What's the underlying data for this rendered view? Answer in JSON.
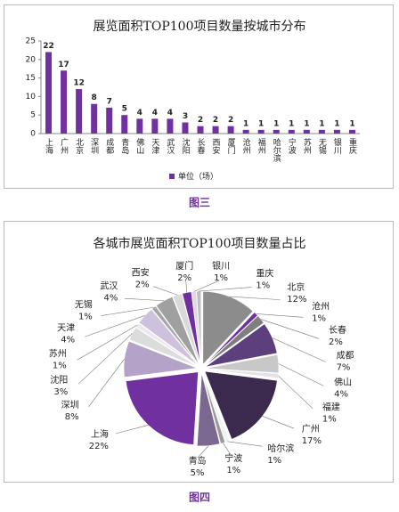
{
  "chart_data": [
    {
      "type": "bar",
      "title": "展览面积TOP100项目数量按城市分布",
      "categories": [
        "上海",
        "广州",
        "北京",
        "深圳",
        "成都",
        "青岛",
        "佛山",
        "天津",
        "武汉",
        "沈阳",
        "长春",
        "西安",
        "厦门",
        "沧州",
        "福州",
        "哈尔滨",
        "宁波",
        "苏州",
        "无锡",
        "银川",
        "重庆"
      ],
      "series": [
        {
          "name": "单位（场）",
          "color": "#7030a0",
          "values": [
            22,
            17,
            12,
            8,
            7,
            5,
            4,
            4,
            4,
            3,
            2,
            2,
            2,
            1,
            1,
            1,
            1,
            1,
            1,
            1,
            1
          ]
        }
      ],
      "ylim": [
        0,
        25
      ],
      "yticks": [
        0,
        5,
        10,
        15,
        20,
        25
      ],
      "legend": "bottom"
    },
    {
      "type": "pie",
      "title": "各城市展览面积TOP100项目数量占比",
      "categories": [
        "北京",
        "沧州",
        "长春",
        "成都",
        "佛山",
        "福建",
        "广州",
        "哈尔滨",
        "宁波",
        "青岛",
        "上海",
        "深圳",
        "沈阳",
        "苏州",
        "天津",
        "无锡",
        "武汉",
        "西安",
        "厦门",
        "银川",
        "重庆"
      ],
      "values": [
        12,
        1,
        2,
        7,
        4,
        1,
        17,
        1,
        1,
        5,
        22,
        8,
        3,
        1,
        4,
        1,
        4,
        2,
        2,
        1,
        1
      ],
      "value_labels": [
        "12%",
        "1%",
        "2%",
        "7%",
        "4%",
        "1%",
        "17%",
        "1%",
        "1%",
        "5%",
        "22%",
        "8%",
        "3%",
        "1%",
        "4%",
        "1%",
        "4%",
        "2%",
        "2%",
        "1%",
        "1%"
      ],
      "colors": [
        "#8c8c8c",
        "#7030a0",
        "#7f7f7f",
        "#5e3f7e",
        "#c8c8c8",
        "#e6e0ec",
        "#3c2a4e",
        "#f2f2f2",
        "#9a9a9a",
        "#7a6890",
        "#7030a0",
        "#b4a2c8",
        "#dcdcdc",
        "#ebe7f0",
        "#cdc1db",
        "#a6a6a6",
        "#a0a0a0",
        "#d9d9d9",
        "#6f2f9f",
        "#e0d8ea",
        "#bfbfbf"
      ]
    }
  ],
  "captions": [
    "图三",
    "图四"
  ]
}
